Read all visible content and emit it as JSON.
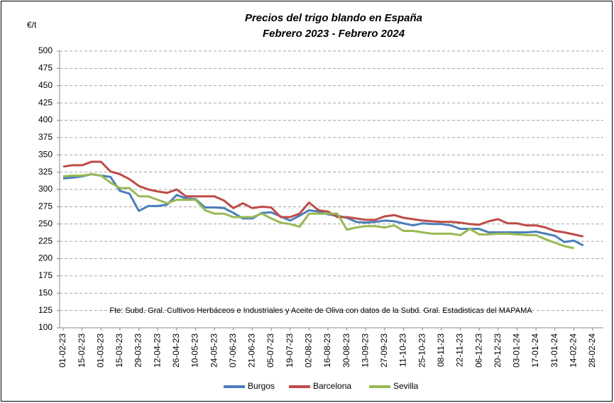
{
  "chart_data": {
    "type": "line",
    "title": "Precios del trigo blando en España",
    "subtitle": "Febrero 2023 - Febrero 2024",
    "y_label": "€/t",
    "note": "Fte: Subd. Gral. Cultivos Herbáceos e Industriales y Aceite de Oliva  con datos de la Subd. Gral. Estadisticas del MAPAMA",
    "x": [
      "01-02-23",
      "08-02-23",
      "15-02-23",
      "22-02-23",
      "01-03-23",
      "08-03-23",
      "15-03-23",
      "22-03-23",
      "29-03-23",
      "05-04-23",
      "12-04-23",
      "19-04-23",
      "26-04-23",
      "03-05-23",
      "10-05-23",
      "17-05-23",
      "24-05-23",
      "31-05-23",
      "07-06-23",
      "14-06-23",
      "21-06-23",
      "28-06-23",
      "05-07-23",
      "12-07-23",
      "19-07-23",
      "26-07-23",
      "02-08-23",
      "09-08-23",
      "16-08-23",
      "23-08-23",
      "30-08-23",
      "06-09-23",
      "13-09-23",
      "20-09-23",
      "27-09-23",
      "04-10-23",
      "11-10-23",
      "18-10-23",
      "25-10-23",
      "01-11-23",
      "08-11-23",
      "15-11-23",
      "22-11-23",
      "29-11-23",
      "06-12-23",
      "13-12-23",
      "20-12-23",
      "27-12-23",
      "03-01-24",
      "10-01-24",
      "17-01-24",
      "24-01-24",
      "31-01-24",
      "07-02-24",
      "14-02-24",
      "21-02-24"
    ],
    "series": [
      {
        "name": "Burgos",
        "color": "#4a7ebb",
        "values": [
          316,
          317,
          319,
          322,
          320,
          318,
          298,
          294,
          269,
          276,
          276,
          278,
          292,
          287,
          286,
          274,
          274,
          273,
          266,
          258,
          258,
          266,
          267,
          261,
          255,
          262,
          270,
          268,
          264,
          262,
          259,
          253,
          252,
          253,
          255,
          254,
          251,
          248,
          251,
          250,
          250,
          248,
          243,
          243,
          243,
          238,
          238,
          238,
          238,
          238,
          239,
          236,
          233,
          224,
          226,
          219
        ]
      },
      {
        "name": "Barcelona",
        "color": "#be4b48",
        "values": [
          333,
          335,
          335,
          340,
          340,
          326,
          322,
          315,
          305,
          300,
          297,
          295,
          300,
          290,
          290,
          290,
          290,
          284,
          273,
          280,
          273,
          275,
          274,
          260,
          260,
          265,
          281,
          270,
          268,
          260,
          260,
          258,
          256,
          256,
          261,
          263,
          259,
          257,
          255,
          254,
          253,
          253,
          252,
          250,
          249,
          254,
          257,
          251,
          251,
          248,
          248,
          245,
          240,
          238,
          235,
          232
        ]
      },
      {
        "name": "Sevilla",
        "color": "#98b954",
        "values": [
          319,
          320,
          320,
          322,
          320,
          310,
          302,
          302,
          290,
          290,
          285,
          280,
          285,
          285,
          285,
          270,
          265,
          265,
          260,
          260,
          260,
          265,
          258,
          252,
          250,
          246,
          265,
          265,
          265,
          265,
          242,
          245,
          247,
          247,
          245,
          248,
          240,
          240,
          238,
          236,
          236,
          236,
          234,
          243,
          235,
          235,
          236,
          236,
          235,
          234,
          234,
          228,
          223,
          218,
          215,
          null
        ]
      }
    ],
    "xticks": [
      "01-02-23",
      "15-02-23",
      "01-03-23",
      "15-03-23",
      "29-03-23",
      "12-04-23",
      "26-04-23",
      "10-05-23",
      "24-05-23",
      "07-06-23",
      "21-06-23",
      "05-07-23",
      "19-07-23",
      "02-08-23",
      "16-08-23",
      "30-08-23",
      "13-09-23",
      "27-09-23",
      "11-10-23",
      "25-10-23",
      "08-11-23",
      "22-11-23",
      "06-12-23",
      "20-12-23",
      "03-01-24",
      "17-01-24",
      "31-01-24",
      "14-02-24",
      "28-02-24"
    ],
    "ylim": [
      100,
      500
    ],
    "yticks": [
      100,
      125,
      150,
      175,
      200,
      225,
      250,
      275,
      300,
      325,
      350,
      375,
      400,
      425,
      450,
      475,
      500
    ],
    "grid": true,
    "legend": "bottom"
  }
}
